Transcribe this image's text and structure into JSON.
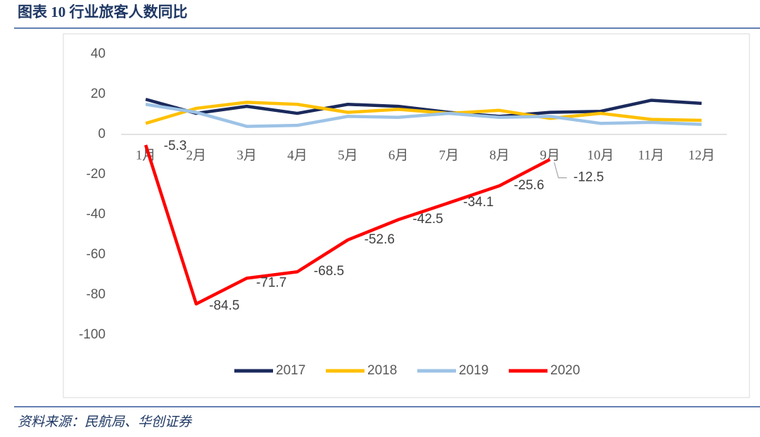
{
  "title": "图表 10  行业旅客人数同比",
  "source": "资料来源：民航局、华创证券",
  "chart_data": {
    "type": "line",
    "categories": [
      "1月",
      "2月",
      "3月",
      "4月",
      "5月",
      "6月",
      "7月",
      "8月",
      "9月",
      "10月",
      "11月",
      "12月"
    ],
    "series": [
      {
        "name": "2017",
        "color": "#1b2a5c",
        "values": [
          17.5,
          10.5,
          14,
          10.5,
          15,
          14,
          11,
          9,
          11,
          11.5,
          17,
          15.5
        ]
      },
      {
        "name": "2018",
        "color": "#ffc000",
        "values": [
          5.5,
          13,
          16,
          15,
          11,
          12.5,
          10.5,
          12,
          8,
          10.5,
          7.5,
          7
        ]
      },
      {
        "name": "2019",
        "color": "#9dc3e6",
        "values": [
          15,
          11,
          4,
          4.5,
          9,
          8.5,
          10.5,
          8.5,
          9,
          5.5,
          6,
          5
        ]
      },
      {
        "name": "2020",
        "color": "#ff0000",
        "values": [
          -5.3,
          -84.5,
          -71.7,
          -68.5,
          -52.6,
          -42.5,
          -34.1,
          -25.6,
          -12.5,
          null,
          null,
          null
        ]
      }
    ],
    "ylim": [
      -100,
      40
    ],
    "yticks": [
      -100,
      -80,
      -60,
      -40,
      -20,
      0,
      20,
      40
    ],
    "labeled_series": 3
  }
}
